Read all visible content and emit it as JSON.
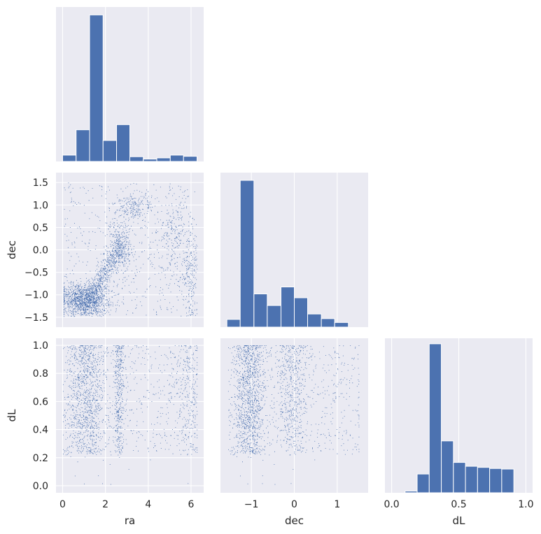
{
  "figure": {
    "background": "#ffffff",
    "panel_bg": "#eaeaf2",
    "grid": "#ffffff",
    "mark": "#4c72b0",
    "text": "#262626"
  },
  "variables": [
    "ra",
    "dec",
    "dL"
  ],
  "chart_data": [
    {
      "type": "bar",
      "name": "ra-hist",
      "bin_edges": [
        0.0,
        0.63,
        1.26,
        1.89,
        2.52,
        3.14,
        3.77,
        4.4,
        5.03,
        5.65,
        6.28
      ],
      "counts": [
        1.6,
        8.0,
        37.0,
        5.3,
        9.3,
        1.2,
        0.6,
        0.9,
        1.6,
        1.3
      ],
      "xlim": [
        -0.31,
        6.59
      ],
      "ylim": [
        0,
        39
      ],
      "xticks": [
        0,
        2,
        4,
        6
      ],
      "yticks": []
    },
    {
      "type": "scatter",
      "name": "ra-vs-dec",
      "x": "ra",
      "y": "dec",
      "xlim": [
        -0.31,
        6.59
      ],
      "ylim": [
        -1.72,
        1.72
      ],
      "xticks": [
        0,
        2,
        4,
        6
      ],
      "yticks": [
        -1.5,
        -1.0,
        -0.5,
        0.0,
        0.5,
        1.0,
        1.5
      ],
      "ytick_labels": [
        "−1.5",
        "−1.0",
        "−0.5",
        "0.0",
        "0.5",
        "1.0",
        "1.5"
      ],
      "ylabel": "dec"
    },
    {
      "type": "bar",
      "name": "dec-hist",
      "bin_edges": [
        -1.57,
        -1.26,
        -0.94,
        -0.63,
        -0.31,
        0.0,
        0.31,
        0.63,
        0.94,
        1.26,
        1.57
      ],
      "counts": [
        1.0,
        19.0,
        4.3,
        2.8,
        5.2,
        3.8,
        1.7,
        1.1,
        0.6,
        0.0
      ],
      "xlim": [
        -1.72,
        1.72
      ],
      "ylim": [
        0,
        20
      ],
      "xticks": [
        -1,
        0,
        1
      ],
      "yticks": []
    },
    {
      "type": "scatter",
      "name": "ra-vs-dL",
      "x": "ra",
      "y": "dL",
      "xlim": [
        -0.31,
        6.59
      ],
      "ylim": [
        -0.05,
        1.05
      ],
      "xticks": [
        0,
        2,
        4,
        6
      ],
      "yticks": [
        0.0,
        0.2,
        0.4,
        0.6,
        0.8,
        1.0
      ],
      "ytick_labels": [
        "0.0",
        "0.2",
        "0.4",
        "0.6",
        "0.8",
        "1.0"
      ],
      "xlabel": "ra",
      "ylabel": "dL",
      "xtick_labels": [
        "0",
        "2",
        "4",
        "6"
      ]
    },
    {
      "type": "scatter",
      "name": "dec-vs-dL",
      "x": "dec",
      "y": "dL",
      "xlim": [
        -1.72,
        1.72
      ],
      "ylim": [
        -0.05,
        1.05
      ],
      "xticks": [
        -1,
        0,
        1
      ],
      "xtick_labels": [
        "−1",
        "0",
        "1"
      ],
      "xlabel": "dec"
    },
    {
      "type": "bar",
      "name": "dL-hist",
      "bin_edges": [
        0.1,
        0.19,
        0.28,
        0.37,
        0.46,
        0.55,
        0.64,
        0.73,
        0.82,
        0.91,
        1.0
      ],
      "counts": [
        0.3,
        3.4,
        27.0,
        9.4,
        5.5,
        4.8,
        4.6,
        4.4,
        4.3,
        0.0
      ],
      "xlim": [
        -0.05,
        1.05
      ],
      "ylim": [
        0,
        28
      ],
      "xticks": [
        0.0,
        0.5,
        1.0
      ],
      "xtick_labels": [
        "0.0",
        "0.5",
        "1.0"
      ],
      "xlabel": "dL"
    }
  ]
}
